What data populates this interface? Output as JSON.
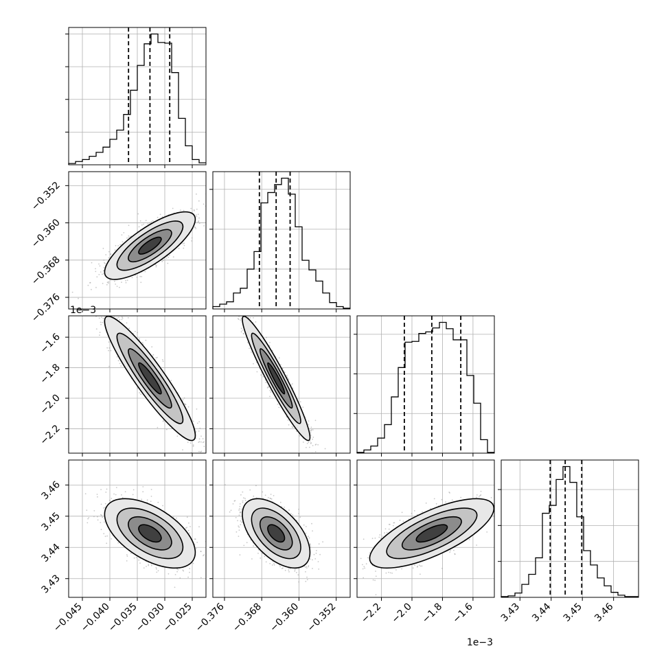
{
  "chart_data": {
    "type": "corner",
    "num_params": 4,
    "params": [
      {
        "ticks": [
          "−0.045",
          "−0.040",
          "−0.035",
          "−0.030",
          "−0.025"
        ],
        "tick_values": [
          -0.045,
          -0.04,
          -0.035,
          -0.03,
          -0.025
        ],
        "range": [
          -0.0475,
          -0.0225
        ],
        "offset_label": ""
      },
      {
        "ticks": [
          "−0.376",
          "−0.368",
          "−0.360",
          "−0.352"
        ],
        "tick_values": [
          -0.376,
          -0.368,
          -0.36,
          -0.352
        ],
        "range": [
          -0.3785,
          -0.349
        ],
        "offset_label": ""
      },
      {
        "ticks": [
          "−2.2",
          "−2.0",
          "−1.8",
          "−1.6"
        ],
        "tick_values": [
          -2.2,
          -2.0,
          -1.8,
          -1.6
        ],
        "range": [
          -2.36,
          -1.46
        ],
        "offset_label": "1e−3"
      },
      {
        "ticks": [
          "3.43",
          "3.44",
          "3.45",
          "3.46"
        ],
        "tick_values": [
          3.43,
          3.44,
          3.45,
          3.46
        ],
        "range": [
          3.424,
          3.468
        ],
        "offset_label": ""
      }
    ],
    "quantiles": [
      [
        -0.0366,
        -0.0327,
        -0.0291
      ],
      [
        -0.3685,
        -0.3649,
        -0.3619
      ],
      [
        -2.05,
        -1.87,
        -1.68
      ],
      [
        3.4397,
        3.4445,
        3.4498
      ]
    ],
    "histograms": [
      {
        "x_start": -0.0475,
        "bin_width": 0.00125,
        "counts": [
          2,
          5,
          8,
          13,
          19,
          27,
          39,
          53,
          77,
          114,
          152,
          185,
          200,
          187,
          186,
          141,
          71,
          29,
          8,
          3
        ]
      },
      {
        "x_start": -0.3785,
        "bin_width": 0.001475,
        "counts": [
          3,
          6,
          9,
          20,
          26,
          50,
          72,
          133,
          146,
          156,
          164,
          144,
          103,
          61,
          49,
          35,
          20,
          8,
          3,
          1
        ]
      },
      {
        "x_start": -2.36,
        "bin_width": 0.045,
        "counts": [
          1,
          4,
          9,
          19,
          36,
          71,
          108,
          140,
          141,
          151,
          153,
          158,
          165,
          157,
          143,
          143,
          98,
          63,
          17,
          1
        ]
      },
      {
        "x_start": 3.424,
        "bin_width": 0.0022,
        "counts": [
          1,
          2,
          6,
          18,
          32,
          55,
          117,
          128,
          164,
          182,
          160,
          112,
          65,
          45,
          27,
          16,
          7,
          3,
          1,
          1
        ]
      }
    ],
    "covariances": {
      "1-0": 0.78,
      "2-0": -0.92,
      "2-1": -0.95,
      "3-0": -0.55,
      "3-1": -0.55,
      "3-2": 0.72
    },
    "grid": true
  }
}
